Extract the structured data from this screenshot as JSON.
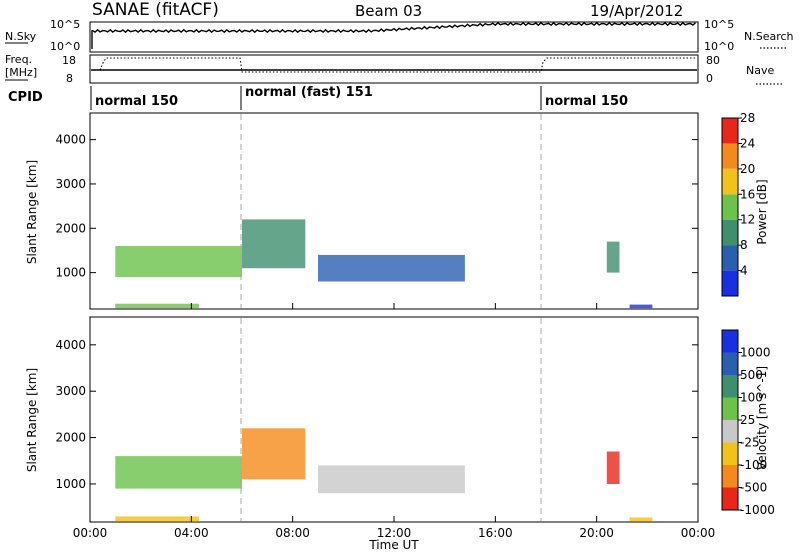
{
  "header": {
    "station": "SANAE (fitACF)",
    "beam": "Beam 03",
    "date": "19/Apr/2012"
  },
  "strip_nsky": {
    "left_label": "N.Sky",
    "right_label": "N.Search",
    "left_ticks": [
      "10^5",
      "10^0"
    ],
    "right_ticks": [
      "10^5",
      "10^0"
    ]
  },
  "strip_freq": {
    "left_label_1": "Freq.",
    "left_label_2": "[MHz]",
    "right_label": "Nave",
    "left_ticks": [
      "18",
      "8"
    ],
    "right_ticks": [
      "80",
      "0"
    ]
  },
  "cpid": {
    "label": "CPID",
    "segments": [
      {
        "start_hour": 0,
        "text": "normal 150"
      },
      {
        "start_hour": 6,
        "text": "normal (fast) 151"
      },
      {
        "start_hour": 18,
        "text": "normal 150"
      }
    ]
  },
  "time_axis": {
    "label": "Time UT",
    "ticks": [
      "00:00",
      "04:00",
      "08:00",
      "12:00",
      "16:00",
      "20:00",
      "00:00"
    ],
    "tick_hours": [
      0,
      4,
      8,
      12,
      16,
      20,
      24
    ]
  },
  "range_axis": {
    "label": "Slant Range [km]",
    "ticks": [
      "1000",
      "2000",
      "3000",
      "4000"
    ],
    "tick_values": [
      1000,
      2000,
      3000,
      4000
    ],
    "ylim": [
      180,
      4600
    ]
  },
  "power_scale": {
    "label": "Power [dB]",
    "ticks": [
      "4",
      "8",
      "12",
      "16",
      "20",
      "24",
      "28"
    ],
    "colors": [
      "#1a2fe0",
      "#2a5fb0",
      "#3f8f6e",
      "#6cc24a",
      "#f2c21a",
      "#f58a1c",
      "#e8261a"
    ]
  },
  "velocity_scale": {
    "label": "Velocity [m s^-1]",
    "ticks": [
      "1000",
      "500",
      "100",
      "25",
      "-25",
      "-100",
      "-500",
      "-1000"
    ],
    "colors": [
      "#1a2fe0",
      "#2a5fb0",
      "#3f8f6e",
      "#6cc24a",
      "#c8c8c8",
      "#f2c21a",
      "#f58a1c",
      "#e8261a"
    ]
  },
  "chart_data": {
    "type": "heatmap",
    "xlim_hours": [
      0,
      24
    ],
    "ylim_km": [
      180,
      4600
    ],
    "mode_change_hours": [
      6,
      18
    ],
    "power_bands": [
      {
        "hour_start": 1.0,
        "hour_end": 6.0,
        "range_start_km": 900,
        "range_end_km": 1600,
        "color": "#6cc24a"
      },
      {
        "hour_start": 6.0,
        "hour_end": 8.5,
        "range_start_km": 1100,
        "range_end_km": 2200,
        "color": "#3f8f6e"
      },
      {
        "hour_start": 9.0,
        "hour_end": 14.8,
        "range_start_km": 800,
        "range_end_km": 1400,
        "color": "#2a5fb0"
      },
      {
        "hour_start": 1.0,
        "hour_end": 4.3,
        "range_start_km": 200,
        "range_end_km": 300,
        "color": "#6cc24a"
      },
      {
        "hour_start": 20.4,
        "hour_end": 20.9,
        "range_start_km": 1000,
        "range_end_km": 1700,
        "color": "#3f8f6e"
      },
      {
        "hour_start": 21.3,
        "hour_end": 22.2,
        "range_start_km": 200,
        "range_end_km": 280,
        "color": "#1a2fe0"
      }
    ],
    "velocity_bands": [
      {
        "hour_start": 1.0,
        "hour_end": 6.0,
        "range_start_km": 900,
        "range_end_km": 1600,
        "color": "#6cc24a"
      },
      {
        "hour_start": 6.0,
        "hour_end": 8.5,
        "range_start_km": 1100,
        "range_end_km": 2200,
        "color": "#f58a1c"
      },
      {
        "hour_start": 9.0,
        "hour_end": 14.8,
        "range_start_km": 800,
        "range_end_km": 1400,
        "color": "#c8c8c8"
      },
      {
        "hour_start": 1.0,
        "hour_end": 4.3,
        "range_start_km": 200,
        "range_end_km": 300,
        "color": "#f2c21a"
      },
      {
        "hour_start": 20.4,
        "hour_end": 20.9,
        "range_start_km": 1000,
        "range_end_km": 1700,
        "color": "#e8261a"
      },
      {
        "hour_start": 21.3,
        "hour_end": 22.2,
        "range_start_km": 200,
        "range_end_km": 280,
        "color": "#f2c21a"
      }
    ]
  }
}
